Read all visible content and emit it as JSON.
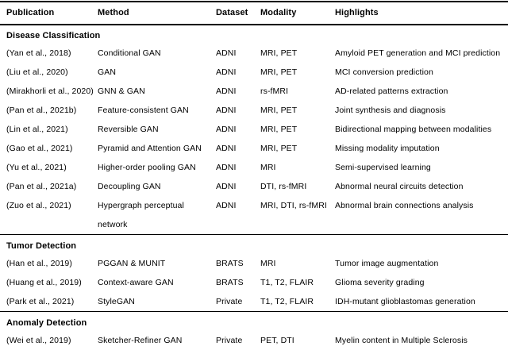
{
  "table": {
    "columns": [
      "Publication",
      "Method",
      "Dataset",
      "Modality",
      "Highlights"
    ],
    "text_color": "#000000",
    "rule_color": "#000000",
    "background_color": "#ffffff",
    "sections": [
      {
        "title": "Disease Classification",
        "rows": [
          [
            "(Yan et al., 2018)",
            "Conditional GAN",
            "ADNI",
            "MRI, PET",
            "Amyloid PET generation and MCI prediction"
          ],
          [
            "(Liu et al., 2020)",
            "GAN",
            "ADNI",
            "MRI, PET",
            "MCI conversion prediction"
          ],
          [
            "(Mirakhorli et al., 2020)",
            "GNN & GAN",
            "ADNI",
            "rs-fMRI",
            "AD-related patterns extraction"
          ],
          [
            "(Pan et al., 2021b)",
            "Feature-consistent GAN",
            "ADNI",
            "MRI, PET",
            "Joint synthesis and diagnosis"
          ],
          [
            "(Lin et al., 2021)",
            "Reversible GAN",
            "ADNI",
            "MRI, PET",
            "Bidirectional mapping between modalities"
          ],
          [
            "(Gao et al., 2021)",
            "Pyramid and Attention GAN",
            "ADNI",
            "MRI, PET",
            "Missing modality imputation"
          ],
          [
            "(Yu et al., 2021)",
            "Higher-order pooling GAN",
            "ADNI",
            "MRI",
            "Semi-supervised learning"
          ],
          [
            "(Pan et al., 2021a)",
            "Decoupling GAN",
            "ADNI",
            "DTI, rs-fMRI",
            "Abnormal neural circuits detection"
          ],
          [
            "(Zuo et al., 2021)",
            "Hypergraph perceptual\nnetwork",
            "ADNI",
            "MRI, DTI, rs-fMRI",
            "Abnormal brain connections analysis"
          ]
        ]
      },
      {
        "title": "Tumor Detection",
        "rows": [
          [
            "(Han et al., 2019)",
            "PGGAN & MUNIT",
            "BRATS",
            "MRI",
            "Tumor image augmentation"
          ],
          [
            "(Huang et al., 2019)",
            "Context-aware GAN",
            "BRATS",
            "T1, T2, FLAIR",
            "Glioma severity grading"
          ],
          [
            "(Park et al., 2021)",
            "StyleGAN",
            "Private",
            "T1, T2, FLAIR",
            "IDH-mutant glioblastomas generation"
          ]
        ]
      },
      {
        "title": "Anomaly Detection",
        "rows": [
          [
            "(Wei et al., 2019)",
            "Sketcher-Refiner GAN",
            "Private",
            "PET, DTI",
            "Myelin content in Multiple Sclerosis"
          ]
        ]
      }
    ]
  }
}
